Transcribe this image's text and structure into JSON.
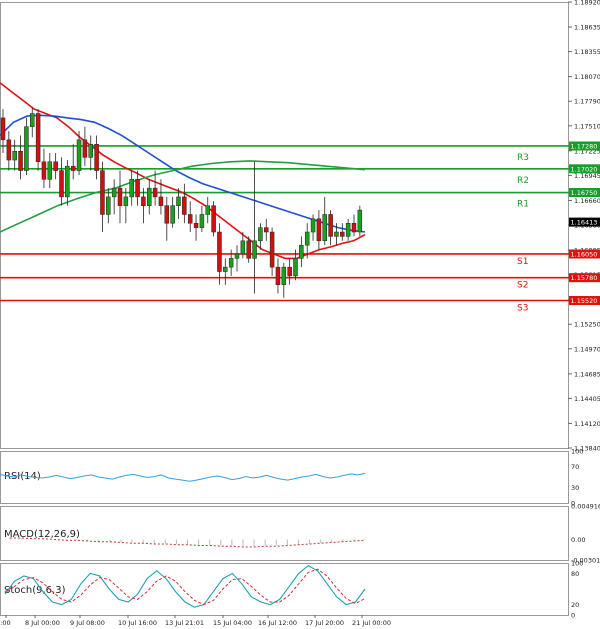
{
  "chart_data": {
    "type": "candlestick",
    "price_axis": {
      "min": 1.1384,
      "max": 1.1892,
      "ticks": [
        "1.18920",
        "1.18635",
        "1.18355",
        "1.18070",
        "1.17790",
        "1.17510",
        "1.17225",
        "1.16945",
        "1.16660",
        "1.16380",
        "1.16095",
        "1.15815",
        "1.15530",
        "1.15250",
        "1.14970",
        "1.14685",
        "1.14405",
        "1.14120",
        "1.13840"
      ]
    },
    "time_axis": {
      "labels": [
        "0:00",
        "8 Jul 00:00",
        "9 Jul 08:00",
        "10 Jul 16:00",
        "13 Jul 21:01",
        "15 Jul 04:00",
        "16 Jul 12:00",
        "17 Jul 20:00",
        "21 Jul 00:00"
      ]
    },
    "candles": [
      [
        1.176,
        1.177,
        1.172,
        1.1735
      ],
      [
        1.1735,
        1.1745,
        1.17,
        1.1712
      ],
      [
        1.1712,
        1.1735,
        1.17,
        1.1722
      ],
      [
        1.1722,
        1.174,
        1.169,
        1.17
      ],
      [
        1.17,
        1.176,
        1.1695,
        1.175
      ],
      [
        1.175,
        1.1772,
        1.1738,
        1.1765
      ],
      [
        1.1765,
        1.177,
        1.17,
        1.171
      ],
      [
        1.171,
        1.1725,
        1.168,
        1.169
      ],
      [
        1.169,
        1.172,
        1.168,
        1.171
      ],
      [
        1.171,
        1.172,
        1.169,
        1.17
      ],
      [
        1.17,
        1.1715,
        1.166,
        1.167
      ],
      [
        1.167,
        1.1712,
        1.166,
        1.1705
      ],
      [
        1.1705,
        1.173,
        1.169,
        1.17
      ],
      [
        1.17,
        1.1745,
        1.1695,
        1.1735
      ],
      [
        1.1735,
        1.175,
        1.1705,
        1.1715
      ],
      [
        1.1715,
        1.174,
        1.17,
        1.173
      ],
      [
        1.173,
        1.174,
        1.169,
        1.17
      ],
      [
        1.17,
        1.171,
        1.163,
        1.165
      ],
      [
        1.165,
        1.168,
        1.164,
        1.167
      ],
      [
        1.167,
        1.169,
        1.165,
        1.168
      ],
      [
        1.168,
        1.17,
        1.164,
        1.166
      ],
      [
        1.166,
        1.168,
        1.164,
        1.167
      ],
      [
        1.167,
        1.17,
        1.166,
        1.169
      ],
      [
        1.169,
        1.17,
        1.166,
        1.167
      ],
      [
        1.167,
        1.168,
        1.164,
        1.166
      ],
      [
        1.166,
        1.169,
        1.165,
        1.168
      ],
      [
        1.168,
        1.17,
        1.166,
        1.167
      ],
      [
        1.167,
        1.169,
        1.165,
        1.166
      ],
      [
        1.166,
        1.167,
        1.162,
        1.164
      ],
      [
        1.164,
        1.167,
        1.1635,
        1.166
      ],
      [
        1.166,
        1.168,
        1.1645,
        1.167
      ],
      [
        1.167,
        1.1685,
        1.164,
        1.165
      ],
      [
        1.165,
        1.1665,
        1.163,
        1.164
      ],
      [
        1.164,
        1.165,
        1.162,
        1.1635
      ],
      [
        1.1635,
        1.166,
        1.163,
        1.165
      ],
      [
        1.165,
        1.167,
        1.164,
        1.166
      ],
      [
        1.166,
        1.1665,
        1.1625,
        1.163
      ],
      [
        1.163,
        1.164,
        1.157,
        1.1585
      ],
      [
        1.1585,
        1.16,
        1.157,
        1.159
      ],
      [
        1.159,
        1.161,
        1.158,
        1.16
      ],
      [
        1.16,
        1.1615,
        1.1585,
        1.1605
      ],
      [
        1.1605,
        1.163,
        1.16,
        1.162
      ],
      [
        1.162,
        1.1625,
        1.1595,
        1.16
      ],
      [
        1.16,
        1.171,
        1.156,
        1.162
      ],
      [
        1.162,
        1.164,
        1.161,
        1.1635
      ],
      [
        1.1635,
        1.1645,
        1.162,
        1.163
      ],
      [
        1.163,
        1.1635,
        1.158,
        1.159
      ],
      [
        1.159,
        1.16,
        1.156,
        1.157
      ],
      [
        1.157,
        1.1595,
        1.1555,
        1.159
      ],
      [
        1.159,
        1.16,
        1.157,
        1.158
      ],
      [
        1.158,
        1.161,
        1.1575,
        1.16
      ],
      [
        1.16,
        1.1625,
        1.159,
        1.1615
      ],
      [
        1.1615,
        1.164,
        1.16,
        1.163
      ],
      [
        1.163,
        1.165,
        1.162,
        1.1645
      ],
      [
        1.1645,
        1.1655,
        1.161,
        1.162
      ],
      [
        1.162,
        1.167,
        1.1615,
        1.165
      ],
      [
        1.165,
        1.1655,
        1.1615,
        1.1625
      ],
      [
        1.1625,
        1.164,
        1.1615,
        1.163
      ],
      [
        1.163,
        1.164,
        1.162,
        1.1625
      ],
      [
        1.1625,
        1.1645,
        1.162,
        1.164
      ],
      [
        1.164,
        1.165,
        1.1625,
        1.163
      ],
      [
        1.163,
        1.166,
        1.1625,
        1.1655
      ]
    ],
    "moving_averages": [
      {
        "name": "red",
        "color": "#e01010",
        "values": [
          1.18,
          1.179,
          1.178,
          1.177,
          1.1765,
          1.176,
          1.175,
          1.1738,
          1.1728,
          1.1718,
          1.171,
          1.1703,
          1.1697,
          1.169,
          1.1685,
          1.168,
          1.1675,
          1.1668,
          1.166,
          1.165,
          1.164,
          1.163,
          1.162,
          1.161,
          1.1605,
          1.16,
          1.16,
          1.1605,
          1.161,
          1.1613,
          1.1617,
          1.162,
          1.1627
        ]
      },
      {
        "name": "blue",
        "color": "#2050d0",
        "values": [
          1.174,
          1.1755,
          1.1762,
          1.1763,
          1.1762,
          1.176,
          1.1758,
          1.1755,
          1.1748,
          1.174,
          1.173,
          1.172,
          1.171,
          1.17,
          1.1692,
          1.1685,
          1.168,
          1.1675,
          1.167,
          1.1665,
          1.166,
          1.1655,
          1.165,
          1.1645,
          1.164,
          1.1635,
          1.1632,
          1.163
        ]
      },
      {
        "name": "green",
        "color": "#20a040",
        "values": [
          1.163,
          1.164,
          1.165,
          1.166,
          1.1668,
          1.1675,
          1.168,
          1.1688,
          1.1695,
          1.17,
          1.1705,
          1.1708,
          1.171,
          1.1711,
          1.171,
          1.1709,
          1.1707,
          1.1705,
          1.1703,
          1.1701
        ]
      }
    ],
    "levels": [
      {
        "name": "R3",
        "value": 1.1728,
        "label": "1.17280",
        "color": "#1a9c2a"
      },
      {
        "name": "R2",
        "value": 1.1702,
        "label": "1.17020",
        "color": "#1a9c2a"
      },
      {
        "name": "R1",
        "value": 1.1675,
        "label": "1.16750",
        "color": "#1a9c2a"
      },
      {
        "name": "S1",
        "value": 1.1605,
        "label": "1.16050",
        "color": "#e01010"
      },
      {
        "name": "S2",
        "value": 1.1578,
        "label": "1.15780",
        "color": "#e01010"
      },
      {
        "name": "S3",
        "value": 1.1552,
        "label": "1.15520",
        "color": "#e01010"
      }
    ],
    "last_price": {
      "value": 1.16413,
      "label": "1.16413"
    },
    "panels": [
      {
        "name": "RSI(14)",
        "ticks": [
          "100",
          "70",
          "30",
          "0"
        ],
        "values": [
          55,
          52,
          50,
          54,
          51,
          49,
          48,
          50,
          53,
          50,
          47,
          49,
          52,
          54,
          50,
          48,
          46,
          50,
          53,
          55,
          52,
          49,
          51,
          54,
          48,
          46,
          44,
          42,
          44,
          47,
          50,
          52,
          49,
          45,
          47,
          51,
          48,
          50,
          53,
          49,
          46,
          44,
          47,
          50,
          52,
          55,
          51,
          48,
          50,
          53,
          56,
          54,
          57
        ]
      },
      {
        "name": "MACD(12,26,9)",
        "ticks": [
          "0.004916",
          "0.00",
          "-0.003012"
        ],
        "values": [
          0.0002,
          0.0002,
          0.0001,
          0.0001,
          0.0,
          -0.0001,
          -0.0001,
          -0.0002,
          -0.0003,
          -0.0003,
          -0.0004,
          -0.0005,
          -0.0005,
          -0.0006,
          -0.0006,
          -0.0007,
          -0.0007,
          -0.0008,
          -0.0008,
          -0.0009,
          -0.0009,
          -0.001,
          -0.001,
          -0.0009,
          -0.0009,
          -0.0008,
          -0.0007,
          -0.0006,
          -0.0005,
          -0.0004,
          -0.0003,
          -0.0002,
          -0.0001
        ]
      },
      {
        "name": "Stoch(9,6,3)",
        "ticks": [
          "100",
          "80",
          "20",
          "0"
        ],
        "k": [
          40,
          65,
          75,
          70,
          45,
          25,
          20,
          30,
          60,
          80,
          75,
          50,
          30,
          25,
          40,
          70,
          85,
          70,
          45,
          25,
          15,
          20,
          45,
          70,
          80,
          60,
          35,
          25,
          20,
          30,
          55,
          80,
          95,
          85,
          60,
          35,
          20,
          25,
          50
        ],
        "d": [
          45,
          55,
          68,
          72,
          62,
          45,
          30,
          25,
          38,
          58,
          72,
          68,
          52,
          35,
          30,
          45,
          65,
          75,
          65,
          45,
          28,
          20,
          28,
          50,
          68,
          70,
          55,
          38,
          25,
          25,
          38,
          60,
          82,
          88,
          75,
          52,
          32,
          22,
          32
        ]
      }
    ]
  }
}
